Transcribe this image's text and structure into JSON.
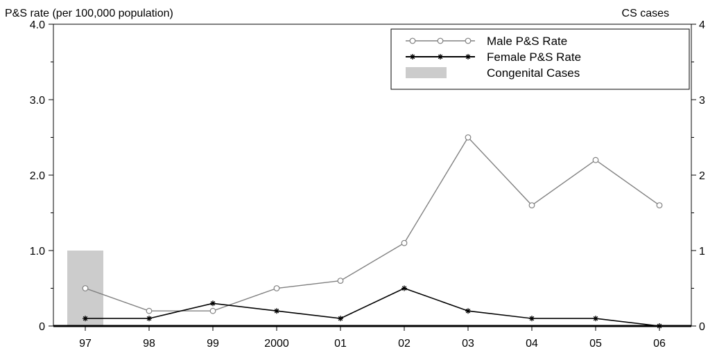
{
  "chart_data": {
    "type": "line",
    "ylabel_left": "P&S rate (per 100,000 population)",
    "ylabel_right": "CS cases",
    "categories": [
      "97",
      "98",
      "99",
      "2000",
      "01",
      "02",
      "03",
      "04",
      "05",
      "06"
    ],
    "yticks_left": [
      "0",
      "1.0",
      "2.0",
      "3.0",
      "4.0"
    ],
    "yticks_right": [
      "0",
      "1",
      "2",
      "3",
      "4"
    ],
    "ylim": [
      0,
      4
    ],
    "ylim_right": [
      0,
      4
    ],
    "grid": false,
    "legend_position": "top-right",
    "series": [
      {
        "name": "Male P&S Rate",
        "kind": "line",
        "marker": "circle",
        "color": "#808080",
        "axis": "left",
        "values": [
          0.5,
          0.2,
          0.2,
          0.5,
          0.6,
          1.1,
          2.5,
          1.6,
          2.2,
          1.6
        ]
      },
      {
        "name": "Female P&S Rate",
        "kind": "line",
        "marker": "star",
        "color": "#000000",
        "axis": "left",
        "values": [
          0.1,
          0.1,
          0.3,
          0.2,
          0.1,
          0.5,
          0.2,
          0.1,
          0.1,
          0.0
        ]
      },
      {
        "name": "Congenital Cases",
        "kind": "bar",
        "color": "#cccccc",
        "axis": "right",
        "values": [
          1,
          0,
          0,
          0,
          0,
          0,
          0,
          0,
          0,
          0
        ]
      }
    ]
  }
}
